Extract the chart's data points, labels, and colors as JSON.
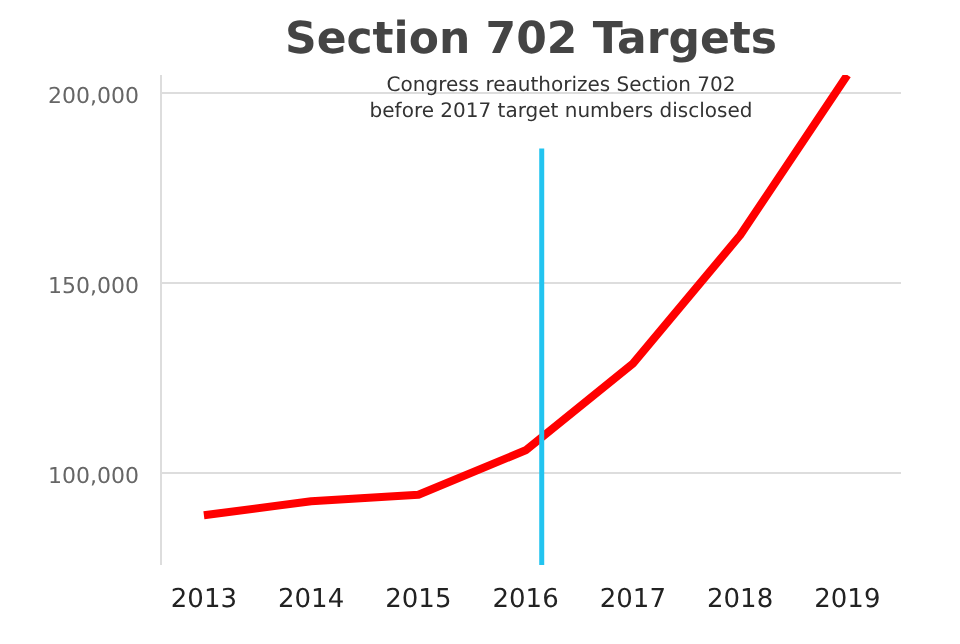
{
  "chart_data": {
    "type": "line",
    "title": "Section 702 Targets",
    "x": [
      2013,
      2014,
      2015,
      2016,
      2017,
      2018,
      2019
    ],
    "series": [
      {
        "color": "#ff0000",
        "values": [
          89100,
          92800,
          94500,
          106200,
          129000,
          162800,
          205000
        ]
      }
    ],
    "xlim": [
      2012.6,
      2019.5
    ],
    "xticks": [
      2013,
      2014,
      2015,
      2016,
      2017,
      2018,
      2019
    ],
    "ylim": [
      76000,
      205000
    ],
    "yticks": [
      {
        "value": 100000,
        "label": "100,000"
      },
      {
        "value": 150000,
        "label": "150,000"
      },
      {
        "value": 200000,
        "label": "200,000"
      }
    ],
    "ref_lines": [
      {
        "axis": "x",
        "value": 2016.15,
        "label": "Congress reauthorizes Section 702\nbefore 2017 target numbers disclosed",
        "color": "#22c4f0"
      }
    ],
    "grid": "y",
    "marker": "none",
    "line_style": "solid"
  }
}
